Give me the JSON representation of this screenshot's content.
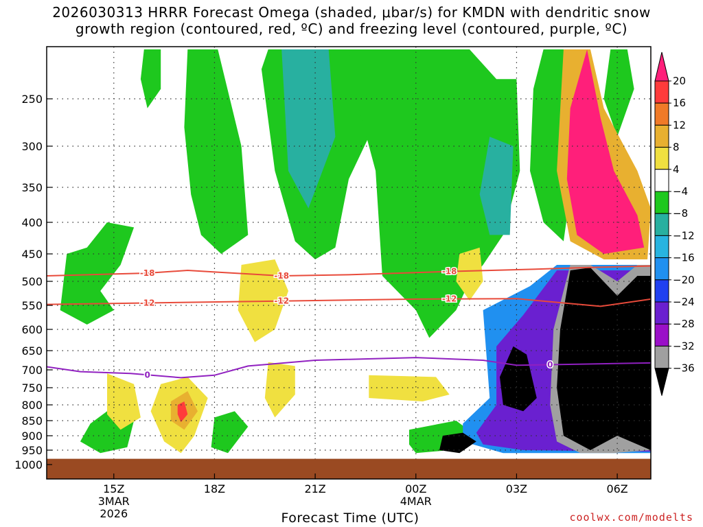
{
  "title_lines": [
    "2026030313 HRRR Forecast Omega (shaded, μbar/s) for KMDN with dendritic snow",
    "growth region (contoured, red, ºC) and freezing level (contoured, purple, ºC)"
  ],
  "credit": "coolwx.com/modelts",
  "chart_data": {
    "type": "heatmap",
    "title": "2026030313 HRRR Forecast Omega (shaded, μbar/s) for KMDN with dendritic snow growth region (contoured, red, ºC) and freezing level (contoured, purple, ºC)",
    "xlabel": "Forecast Time (UTC)",
    "ylabel": "",
    "x_hours_since_init": [
      2,
      5,
      8,
      11,
      14,
      17
    ],
    "x_tick_labels": [
      {
        "hour": 2,
        "lines": [
          "15Z",
          "3MAR",
          "2026"
        ]
      },
      {
        "hour": 5,
        "lines": [
          "18Z"
        ]
      },
      {
        "hour": 8,
        "lines": [
          "21Z"
        ]
      },
      {
        "hour": 11,
        "lines": [
          "00Z",
          "4MAR"
        ]
      },
      {
        "hour": 14,
        "lines": [
          "03Z"
        ]
      },
      {
        "hour": 17,
        "lines": [
          "06Z"
        ]
      }
    ],
    "xlim": [
      0,
      18
    ],
    "ylim": [
      1000,
      200
    ],
    "y_ticks": [
      250,
      300,
      350,
      400,
      450,
      500,
      550,
      600,
      650,
      700,
      750,
      800,
      850,
      900,
      950,
      1000
    ],
    "y_gridlines": [
      250,
      300,
      350,
      400,
      450,
      500,
      550,
      600,
      650,
      700,
      750,
      800,
      850,
      900,
      950
    ],
    "colorbar": {
      "labels": [
        "20",
        "16",
        "12",
        "8",
        "4",
        "−4",
        "−8",
        "−12",
        "−16",
        "−20",
        "−24",
        "−28",
        "−32",
        "−36"
      ],
      "colors": [
        "#ff1f7a",
        "#ff3b3b",
        "#f07a28",
        "#e8b030",
        "#f0e040",
        "#ffffff",
        "#1ec81e",
        "#28b0a0",
        "#28b4e0",
        "#2090f0",
        "#2040f0",
        "#6a20d0",
        "#9a10c8",
        "#a0a0a0",
        "#000000"
      ]
    },
    "ground_level_hpa": 980,
    "ground_color": "#9a4a22",
    "contours": [
      {
        "name": "-18",
        "color": "#e84a3a",
        "points": [
          [
            0,
            490
          ],
          [
            3,
            485
          ],
          [
            4.2,
            480
          ],
          [
            5,
            483
          ],
          [
            7,
            490
          ],
          [
            9,
            488
          ],
          [
            11,
            484
          ],
          [
            12,
            482
          ],
          [
            14.5,
            478
          ],
          [
            16,
            475
          ],
          [
            18,
            472
          ]
        ]
      },
      {
        "name": "-12",
        "color": "#e84a3a",
        "points": [
          [
            0,
            548
          ],
          [
            3,
            545
          ],
          [
            6,
            542
          ],
          [
            8,
            540
          ],
          [
            11,
            537
          ],
          [
            14,
            536
          ],
          [
            16.5,
            552
          ],
          [
            18,
            537
          ]
        ]
      },
      {
        "name": "0",
        "color": "#9020c0",
        "points": [
          [
            0,
            692
          ],
          [
            1,
            705
          ],
          [
            2.5,
            710
          ],
          [
            4,
            722
          ],
          [
            5,
            715
          ],
          [
            6,
            690
          ],
          [
            8,
            675
          ],
          [
            11,
            668
          ],
          [
            13,
            675
          ],
          [
            14,
            688
          ],
          [
            16,
            685
          ],
          [
            18,
            682
          ]
        ]
      }
    ],
    "shaded_regions": [
      {
        "value": -4,
        "color": "#1ec81e",
        "polygon": [
          [
            1.2,
            440
          ],
          [
            1.8,
            400
          ],
          [
            2.6,
            408
          ],
          [
            2.2,
            470
          ],
          [
            1.6,
            520
          ],
          [
            2.0,
            560
          ],
          [
            1.2,
            590
          ],
          [
            0.4,
            560
          ],
          [
            0.6,
            450
          ]
        ]
      },
      {
        "value": -4,
        "color": "#1ec81e",
        "polygon": [
          [
            2.9,
            160
          ],
          [
            3.4,
            160
          ],
          [
            3.4,
            240
          ],
          [
            3.0,
            260
          ],
          [
            2.8,
            230
          ]
        ]
      },
      {
        "value": -4,
        "color": "#1ec81e",
        "polygon": [
          [
            4.2,
            180
          ],
          [
            5.1,
            200
          ],
          [
            5.8,
            300
          ],
          [
            6.0,
            420
          ],
          [
            5.2,
            450
          ],
          [
            4.6,
            420
          ],
          [
            4.3,
            360
          ],
          [
            4.1,
            280
          ]
        ]
      },
      {
        "value": -4,
        "color": "#1ec81e",
        "polygon": [
          [
            6.6,
            140
          ],
          [
            8.8,
            110
          ],
          [
            10.8,
            200
          ],
          [
            10.6,
            300
          ],
          [
            9.6,
            290
          ],
          [
            9.0,
            340
          ],
          [
            8.6,
            440
          ],
          [
            8.0,
            460
          ],
          [
            7.4,
            430
          ],
          [
            6.8,
            330
          ],
          [
            6.4,
            220
          ]
        ]
      },
      {
        "value": -4,
        "color": "#1ec81e",
        "polygon": [
          [
            9.0,
            160
          ],
          [
            11.4,
            130
          ],
          [
            12.6,
            200
          ],
          [
            13.4,
            230
          ],
          [
            14.0,
            230
          ],
          [
            14.1,
            330
          ],
          [
            13.6,
            420
          ],
          [
            13.0,
            470
          ],
          [
            12.6,
            500
          ],
          [
            12.2,
            560
          ],
          [
            11.4,
            620
          ],
          [
            11.0,
            560
          ],
          [
            10.0,
            490
          ],
          [
            9.8,
            330
          ],
          [
            9.3,
            260
          ]
        ]
      },
      {
        "value": -4,
        "color": "#1ec81e",
        "polygon": [
          [
            1.8,
            820
          ],
          [
            2.6,
            850
          ],
          [
            2.4,
            940
          ],
          [
            1.6,
            960
          ],
          [
            1.0,
            920
          ],
          [
            1.3,
            860
          ]
        ]
      },
      {
        "value": -4,
        "color": "#1ec81e",
        "polygon": [
          [
            5.0,
            840
          ],
          [
            5.6,
            820
          ],
          [
            6.0,
            870
          ],
          [
            5.4,
            960
          ],
          [
            4.9,
            940
          ]
        ]
      },
      {
        "value": -4,
        "color": "#1ec81e",
        "polygon": [
          [
            10.8,
            880
          ],
          [
            12.2,
            850
          ],
          [
            12.8,
            900
          ],
          [
            12.0,
            950
          ],
          [
            11.0,
            960
          ],
          [
            10.8,
            930
          ]
        ]
      },
      {
        "value": -4,
        "color": "#1ec81e",
        "polygon": [
          [
            14.8,
            130
          ],
          [
            15.4,
            150
          ],
          [
            15.8,
            300
          ],
          [
            15.4,
            430
          ],
          [
            14.8,
            400
          ],
          [
            14.4,
            330
          ],
          [
            14.5,
            240
          ]
        ]
      },
      {
        "value": -4,
        "color": "#1ec81e",
        "polygon": [
          [
            16.8,
            160
          ],
          [
            17.3,
            170
          ],
          [
            17.5,
            240
          ],
          [
            17.0,
            290
          ],
          [
            16.6,
            250
          ]
        ]
      },
      {
        "value": -8,
        "color": "#28b0a0",
        "polygon": [
          [
            7.0,
            180
          ],
          [
            8.4,
            170
          ],
          [
            8.6,
            290
          ],
          [
            7.8,
            380
          ],
          [
            7.2,
            330
          ]
        ]
      },
      {
        "value": -8,
        "color": "#28b0a0",
        "polygon": [
          [
            13.2,
            290
          ],
          [
            13.9,
            300
          ],
          [
            13.8,
            420
          ],
          [
            13.2,
            420
          ],
          [
            12.9,
            360
          ]
        ]
      },
      {
        "value": 4,
        "color": "#f0e040",
        "polygon": [
          [
            5.8,
            470
          ],
          [
            6.8,
            460
          ],
          [
            7.2,
            520
          ],
          [
            6.8,
            600
          ],
          [
            6.2,
            630
          ],
          [
            5.7,
            560
          ]
        ]
      },
      {
        "value": 4,
        "color": "#f0e040",
        "polygon": [
          [
            3.4,
            740
          ],
          [
            4.2,
            720
          ],
          [
            4.8,
            780
          ],
          [
            4.4,
            900
          ],
          [
            4.0,
            960
          ],
          [
            3.5,
            920
          ],
          [
            3.1,
            820
          ]
        ]
      },
      {
        "value": 4,
        "color": "#f0e040",
        "polygon": [
          [
            1.8,
            710
          ],
          [
            2.6,
            740
          ],
          [
            2.8,
            840
          ],
          [
            2.2,
            880
          ],
          [
            1.8,
            830
          ]
        ]
      },
      {
        "value": 4,
        "color": "#f0e040",
        "polygon": [
          [
            6.6,
            680
          ],
          [
            7.4,
            690
          ],
          [
            7.4,
            770
          ],
          [
            6.8,
            840
          ],
          [
            6.5,
            780
          ]
        ]
      },
      {
        "value": 4,
        "color": "#f0e040",
        "polygon": [
          [
            9.6,
            715
          ],
          [
            11.6,
            720
          ],
          [
            12.0,
            770
          ],
          [
            11.2,
            790
          ],
          [
            9.6,
            780
          ]
        ]
      },
      {
        "value": 4,
        "color": "#f0e040",
        "polygon": [
          [
            12.3,
            450
          ],
          [
            12.9,
            440
          ],
          [
            13.0,
            500
          ],
          [
            12.6,
            540
          ],
          [
            12.2,
            500
          ]
        ]
      },
      {
        "value": 8,
        "color": "#e8b030",
        "polygon": [
          [
            3.7,
            790
          ],
          [
            4.2,
            760
          ],
          [
            4.5,
            820
          ],
          [
            4.1,
            880
          ],
          [
            3.7,
            850
          ]
        ]
      },
      {
        "value": 16,
        "color": "#ff3b3b",
        "polygon": [
          [
            3.9,
            800
          ],
          [
            4.1,
            790
          ],
          [
            4.2,
            830
          ],
          [
            4.0,
            855
          ],
          [
            3.9,
            830
          ]
        ]
      },
      {
        "value": 12,
        "color": "#e8b030",
        "polygon": [
          [
            15.4,
            200
          ],
          [
            16.2,
            160
          ],
          [
            16.6,
            260
          ],
          [
            17.6,
            330
          ],
          [
            18,
            380
          ],
          [
            17.9,
            460
          ],
          [
            16.6,
            460
          ],
          [
            15.6,
            430
          ],
          [
            15.2,
            330
          ]
        ]
      },
      {
        "value": 20,
        "color": "#ff1f7a",
        "polygon": [
          [
            15.6,
            260
          ],
          [
            16.1,
            180
          ],
          [
            16.5,
            270
          ],
          [
            16.9,
            330
          ],
          [
            17.6,
            390
          ],
          [
            17.8,
            440
          ],
          [
            16.6,
            450
          ],
          [
            15.8,
            420
          ],
          [
            15.5,
            340
          ]
        ]
      },
      {
        "value": -16,
        "color": "#2090f0",
        "polygon": [
          [
            13.0,
            560
          ],
          [
            14.4,
            510
          ],
          [
            15.2,
            470
          ],
          [
            18,
            470
          ],
          [
            18,
            960
          ],
          [
            13.6,
            960
          ],
          [
            12.4,
            920
          ],
          [
            12.4,
            860
          ],
          [
            13.2,
            780
          ]
        ]
      },
      {
        "value": -24,
        "color": "#6a20d0",
        "polygon": [
          [
            13.4,
            640
          ],
          [
            14.2,
            570
          ],
          [
            15.2,
            480
          ],
          [
            18,
            480
          ],
          [
            18,
            955
          ],
          [
            14.2,
            950
          ],
          [
            13.0,
            930
          ],
          [
            12.8,
            890
          ],
          [
            13.4,
            800
          ]
        ]
      },
      {
        "value": -32,
        "color": "#a0a0a0",
        "polygon": [
          [
            15.6,
            470
          ],
          [
            16.2,
            470
          ],
          [
            17.0,
            500
          ],
          [
            17.6,
            470
          ],
          [
            18,
            470
          ],
          [
            18,
            950
          ],
          [
            16.9,
            960
          ],
          [
            15.9,
            960
          ],
          [
            15.2,
            920
          ],
          [
            15.0,
            800
          ],
          [
            15.1,
            600
          ]
        ]
      },
      {
        "value": -36,
        "color": "#000000",
        "polygon": [
          [
            15.6,
            480
          ],
          [
            16.2,
            475
          ],
          [
            17.0,
            530
          ],
          [
            17.6,
            490
          ],
          [
            18,
            490
          ],
          [
            18,
            950
          ],
          [
            17.0,
            900
          ],
          [
            16.2,
            950
          ],
          [
            15.4,
            900
          ],
          [
            15.2,
            750
          ],
          [
            15.3,
            600
          ]
        ]
      },
      {
        "value": -36,
        "color": "#000000",
        "polygon": [
          [
            13.9,
            640
          ],
          [
            14.3,
            660
          ],
          [
            14.6,
            780
          ],
          [
            14.2,
            820
          ],
          [
            13.6,
            800
          ],
          [
            13.5,
            720
          ]
        ]
      },
      {
        "value": -36,
        "color": "#000000",
        "polygon": [
          [
            11.8,
            900
          ],
          [
            12.4,
            890
          ],
          [
            12.8,
            920
          ],
          [
            12.3,
            960
          ],
          [
            11.7,
            950
          ]
        ]
      }
    ]
  }
}
